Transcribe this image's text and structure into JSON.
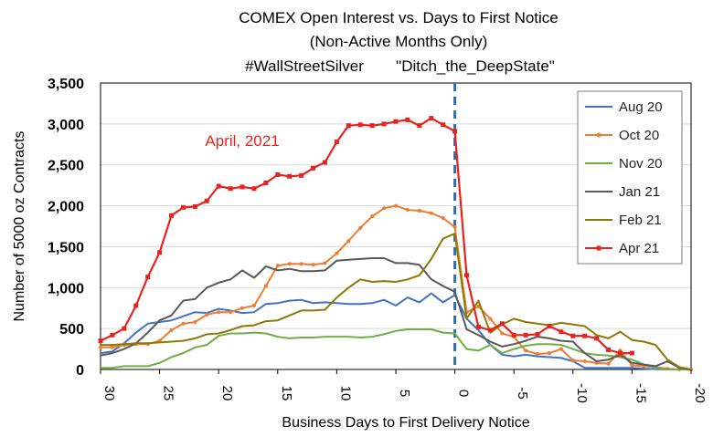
{
  "chart_data": {
    "type": "line",
    "title": [
      "COMEX Open Interest vs. Days to First Notice",
      "(Non-Active Months Only)"
    ],
    "subtitle": [
      "#WallStreetSilver",
      "\"Ditch_the_DeepState\""
    ],
    "xlabel": "Business Days to First Delivery Notice",
    "ylabel": "Number of 5000 oz Contracts",
    "xlim": [
      30,
      -20
    ],
    "ylim": [
      0,
      3500
    ],
    "x_ticks": [
      30,
      25,
      20,
      15,
      10,
      5,
      0,
      -5,
      -10,
      -15,
      -20
    ],
    "y_ticks": [
      0,
      500,
      1000,
      1500,
      2000,
      2500,
      3000,
      3500
    ],
    "y_tick_labels": [
      "0",
      "500",
      "1,000",
      "1,500",
      "2,000",
      "2,500",
      "3,000",
      "3,500"
    ],
    "grid": "horizontal",
    "legend_position": "top-right",
    "reference_line": {
      "x": 0,
      "style": "dashed",
      "color": "#2e6fa8"
    },
    "annotations": [
      {
        "text": "April, 2021",
        "x": 18,
        "y": 2800,
        "color": "#e8231f"
      }
    ],
    "series": [
      {
        "name": "Aug 20",
        "color": "#4472c4",
        "marker": "none",
        "x": [
          30,
          29,
          28,
          27,
          26,
          25,
          24,
          23,
          22,
          21,
          20,
          19,
          18,
          17,
          16,
          15,
          14,
          13,
          12,
          11,
          10,
          9,
          8,
          7,
          6,
          5,
          4,
          3,
          2,
          1,
          0,
          -1,
          -2,
          -3,
          -4,
          -5,
          -6,
          -7,
          -8,
          -9,
          -10,
          -11,
          -12,
          -13,
          -14,
          -15,
          -16,
          -17,
          -18,
          -19,
          -20
        ],
        "y": [
          200,
          220,
          320,
          450,
          560,
          580,
          600,
          650,
          700,
          690,
          740,
          720,
          690,
          700,
          800,
          810,
          840,
          850,
          810,
          820,
          810,
          800,
          800,
          810,
          850,
          780,
          880,
          820,
          930,
          820,
          910,
          620,
          480,
          300,
          180,
          160,
          180,
          160,
          150,
          140,
          100,
          20,
          20,
          20,
          20,
          20,
          10,
          5,
          0,
          0,
          0
        ]
      },
      {
        "name": "Oct 20",
        "color": "#ed7d31",
        "marker": "circle",
        "x": [
          30,
          29,
          28,
          27,
          26,
          25,
          24,
          23,
          22,
          21,
          20,
          19,
          18,
          17,
          16,
          15,
          14,
          13,
          12,
          11,
          10,
          9,
          8,
          7,
          6,
          5,
          4,
          3,
          2,
          1,
          0,
          -1,
          -2,
          -3,
          -4,
          -5,
          -6,
          -7,
          -8,
          -9,
          -10,
          -11,
          -12,
          -13,
          -14,
          -15,
          -16,
          -17,
          -18,
          -19,
          -20
        ],
        "y": [
          270,
          270,
          300,
          310,
          310,
          350,
          480,
          560,
          580,
          670,
          700,
          700,
          750,
          780,
          1020,
          1270,
          1290,
          1290,
          1280,
          1300,
          1420,
          1570,
          1730,
          1870,
          1970,
          2000,
          1950,
          1940,
          1910,
          1850,
          1740,
          700,
          770,
          620,
          440,
          400,
          230,
          190,
          200,
          250,
          110,
          100,
          80,
          70,
          230,
          50,
          40,
          30,
          10,
          0,
          0
        ]
      },
      {
        "name": "Nov 20",
        "color": "#70ad47",
        "marker": "none",
        "x": [
          30,
          29,
          28,
          27,
          26,
          25,
          24,
          23,
          22,
          21,
          20,
          19,
          18,
          17,
          16,
          15,
          14,
          13,
          12,
          11,
          10,
          9,
          8,
          7,
          6,
          5,
          4,
          3,
          2,
          1,
          0,
          -1,
          -2,
          -3,
          -4,
          -5,
          -6,
          -7,
          -8,
          -9,
          -10,
          -11,
          -12,
          -13,
          -14,
          -15,
          -16,
          -17,
          -18,
          -19,
          -20
        ],
        "y": [
          20,
          20,
          40,
          40,
          40,
          80,
          150,
          200,
          270,
          300,
          410,
          440,
          440,
          450,
          440,
          400,
          380,
          390,
          390,
          400,
          400,
          400,
          390,
          400,
          430,
          470,
          490,
          490,
          490,
          450,
          440,
          250,
          230,
          300,
          200,
          250,
          290,
          310,
          310,
          300,
          250,
          200,
          180,
          170,
          150,
          120,
          60,
          20,
          0,
          0,
          0
        ]
      },
      {
        "name": "Jan 21",
        "color": "#595959",
        "marker": "none",
        "x": [
          30,
          29,
          28,
          27,
          26,
          25,
          24,
          23,
          22,
          21,
          20,
          19,
          18,
          17,
          16,
          15,
          14,
          13,
          12,
          11,
          10,
          9,
          8,
          7,
          6,
          5,
          4,
          3,
          2,
          1,
          0,
          -1,
          -2,
          -3,
          -4,
          -5,
          -6,
          -7,
          -8,
          -9,
          -10,
          -11,
          -12,
          -13,
          -14,
          -15,
          -16,
          -17,
          -18,
          -19,
          -20
        ],
        "y": [
          170,
          200,
          250,
          320,
          450,
          600,
          660,
          840,
          860,
          1000,
          1060,
          1100,
          1210,
          1120,
          1260,
          1210,
          1230,
          1200,
          1200,
          1210,
          1330,
          1340,
          1350,
          1360,
          1360,
          1300,
          1300,
          1280,
          1100,
          1020,
          950,
          490,
          420,
          340,
          280,
          310,
          350,
          400,
          380,
          350,
          340,
          200,
          100,
          120,
          180,
          80,
          60,
          40,
          100,
          20,
          0
        ]
      },
      {
        "name": "Feb 21",
        "color": "#8c7a06",
        "marker": "none",
        "x": [
          30,
          29,
          28,
          27,
          26,
          25,
          24,
          23,
          22,
          21,
          20,
          19,
          18,
          17,
          16,
          15,
          14,
          13,
          12,
          11,
          10,
          9,
          8,
          7,
          6,
          5,
          4,
          3,
          2,
          1,
          0,
          -1,
          -2,
          -3,
          -4,
          -5,
          -6,
          -7,
          -8,
          -9,
          -10,
          -11,
          -12,
          -13,
          -14,
          -15,
          -16,
          -17,
          -18,
          -19,
          -20
        ],
        "y": [
          300,
          300,
          310,
          320,
          320,
          330,
          340,
          350,
          380,
          430,
          440,
          480,
          530,
          540,
          590,
          600,
          660,
          720,
          720,
          730,
          880,
          1000,
          1100,
          1070,
          1080,
          1070,
          1100,
          1150,
          1350,
          1600,
          1660,
          620,
          840,
          450,
          550,
          620,
          580,
          560,
          540,
          570,
          550,
          530,
          420,
          380,
          460,
          360,
          340,
          300,
          120,
          30,
          0
        ]
      },
      {
        "name": "Apr 21",
        "color": "#e8231f",
        "marker": "square",
        "x": [
          30,
          29,
          28,
          27,
          26,
          25,
          24,
          23,
          22,
          21,
          20,
          19,
          18,
          17,
          16,
          15,
          14,
          13,
          12,
          11,
          10,
          9,
          8,
          7,
          6,
          5,
          4,
          3,
          2,
          1,
          0,
          -1,
          -2,
          -3,
          -4,
          -5,
          -6,
          -7,
          -8,
          -9,
          -10,
          -11,
          -12,
          -13,
          -14,
          -15
        ],
        "y": [
          350,
          420,
          500,
          780,
          1130,
          1430,
          1880,
          1980,
          1990,
          2060,
          2240,
          2210,
          2230,
          2210,
          2280,
          2380,
          2360,
          2370,
          2460,
          2530,
          2780,
          2980,
          2990,
          2980,
          3000,
          3030,
          3050,
          2980,
          3070,
          2990,
          2910,
          1150,
          520,
          480,
          560,
          420,
          420,
          430,
          530,
          460,
          410,
          410,
          380,
          240,
          200,
          200
        ]
      }
    ]
  }
}
